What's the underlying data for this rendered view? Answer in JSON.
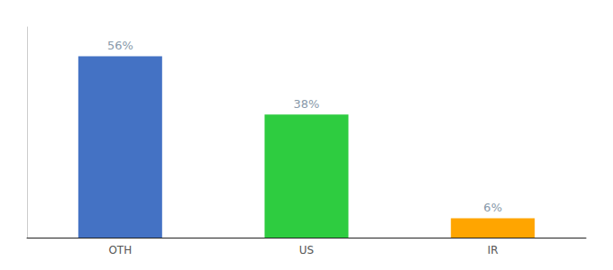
{
  "chart_data": {
    "type": "bar",
    "categories": [
      "OTH",
      "US",
      "IR"
    ],
    "values": [
      56,
      38,
      6
    ],
    "value_labels": [
      "56%",
      "38%",
      "6%"
    ],
    "colors": [
      "#4472C4",
      "#2ECC40",
      "#FFA500"
    ],
    "ylim": [
      0,
      65
    ],
    "data_labels": true,
    "tick_labels": "x",
    "grid": false
  }
}
